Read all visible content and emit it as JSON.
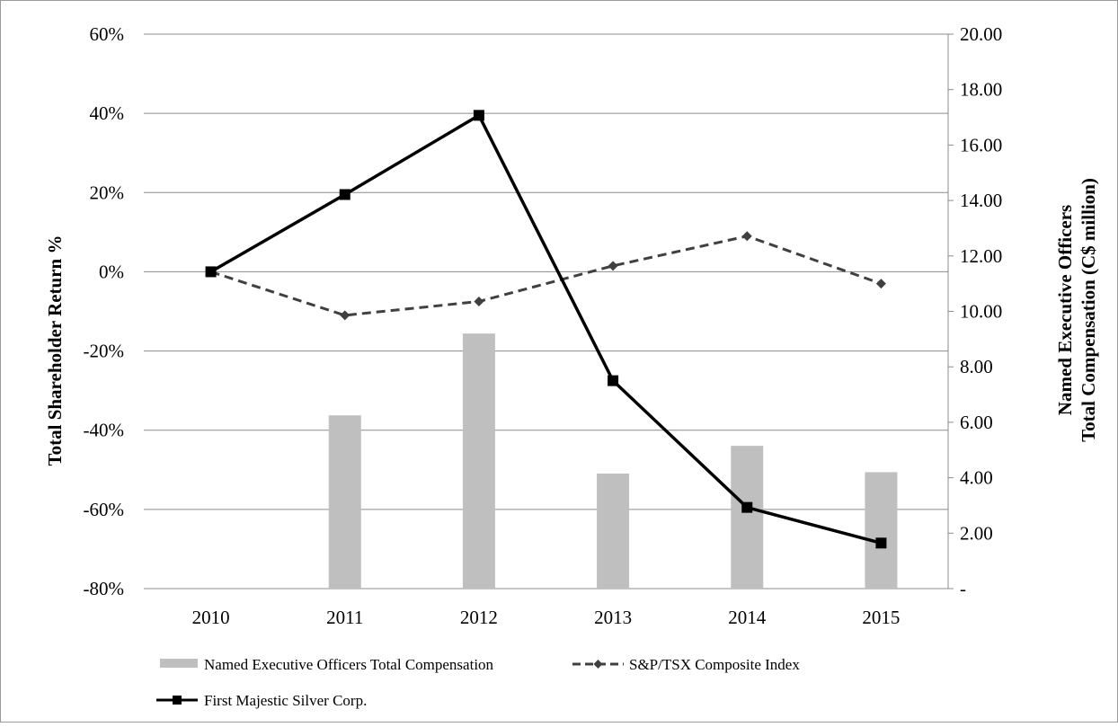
{
  "chart_data": {
    "type": "bar+line",
    "categories": [
      "2010",
      "2011",
      "2012",
      "2013",
      "2014",
      "2015"
    ],
    "y_left": {
      "label": "Total Shareholder Return %",
      "range": [
        -80,
        60
      ],
      "ticks": [
        60,
        40,
        20,
        0,
        -20,
        -40,
        -60,
        -80
      ],
      "tick_labels": [
        "60%",
        "40%",
        "20%",
        "0%",
        "-20%",
        "-40%",
        "-60%",
        "-80%"
      ]
    },
    "y_right": {
      "label_line1": "Named Executive Officers",
      "label_line2": "Total Compensation (C$ million)",
      "range": [
        0,
        20
      ],
      "ticks": [
        20,
        18,
        16,
        14,
        12,
        10,
        8,
        6,
        4,
        2,
        0
      ],
      "tick_labels": [
        "20.00",
        "18.00",
        "16.00",
        "14.00",
        "12.00",
        "10.00",
        "8.00",
        "6.00",
        "4.00",
        "2.00",
        "-"
      ]
    },
    "series": [
      {
        "name": "Named Executive Officers Total Compensation",
        "type": "bar",
        "axis": "right",
        "color": "#bfbfbf",
        "values": [
          null,
          6.25,
          9.2,
          4.15,
          5.15,
          4.2
        ]
      },
      {
        "name": "S&P/TSX Composite Index",
        "type": "line",
        "style": "dashed",
        "marker": "diamond",
        "axis": "left",
        "color": "#404040",
        "values": [
          0,
          -11,
          -7.5,
          1.5,
          9,
          -3
        ]
      },
      {
        "name": "First Majestic Silver Corp.",
        "type": "line",
        "style": "solid",
        "marker": "square",
        "axis": "left",
        "color": "#000000",
        "values": [
          0,
          19.5,
          39.5,
          -27.5,
          -59.5,
          -68.5
        ]
      }
    ],
    "grid": true,
    "legend_position": "bottom"
  }
}
